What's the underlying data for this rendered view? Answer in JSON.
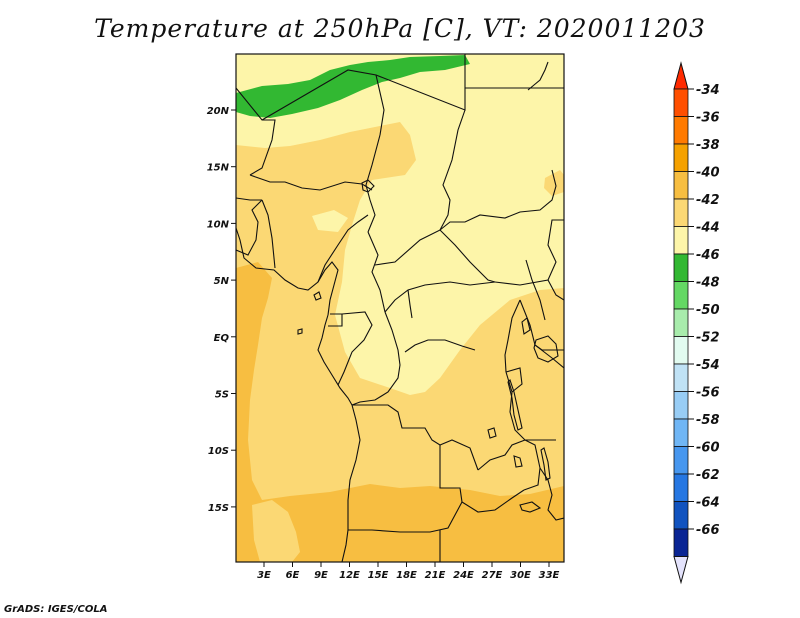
{
  "title": "Temperature at 250hPa [C], VT: 2020011203",
  "credit": "GrADS: IGES/COLA",
  "map": {
    "lat_labels": [
      "20N",
      "15N",
      "10N",
      "5N",
      "EQ",
      "5S",
      "10S",
      "15S"
    ],
    "lon_labels": [
      "3E",
      "6E",
      "9E",
      "12E",
      "15E",
      "18E",
      "21E",
      "24E",
      "27E",
      "30E",
      "33E"
    ]
  },
  "colorbar": {
    "labels": [
      "-34",
      "-36",
      "-38",
      "-40",
      "-42",
      "-44",
      "-46",
      "-48",
      "-50",
      "-52",
      "-54",
      "-56",
      "-58",
      "-60",
      "-62",
      "-64",
      "-66"
    ],
    "colors": [
      "#ff4f00",
      "#ff7a00",
      "#f5a100",
      "#f7be41",
      "#fbd874",
      "#fdf5a9",
      "#32b832",
      "#64d864",
      "#a8ecac",
      "#e2fbf0",
      "#c0e2f5",
      "#98cdf5",
      "#70b6f5",
      "#4797ef",
      "#2677e2",
      "#1153bf",
      "#0a2594"
    ],
    "top_arrow_color": "#ff2a00",
    "bottom_arrow_color": "#e4e3fc"
  }
}
